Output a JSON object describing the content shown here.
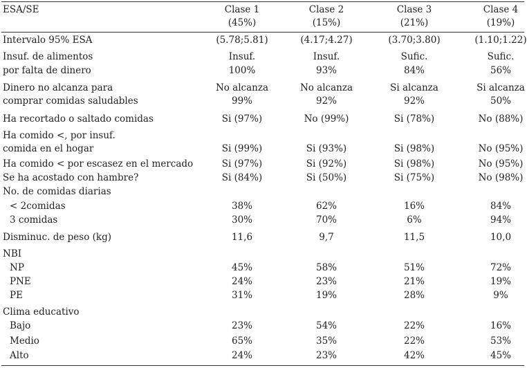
{
  "header": {
    "label": "ESA/SE",
    "classes": [
      {
        "name": "Clase 1",
        "pct": "(45%)"
      },
      {
        "name": "Clase 2",
        "pct": "(15%)"
      },
      {
        "name": "Clase 3",
        "pct": "(21%)"
      },
      {
        "name": "Clase 4",
        "pct": "(19%)"
      }
    ]
  },
  "rows": [
    {
      "label": "Intervalo 95% ESA",
      "values": [
        "(5.78;5.81)",
        "(4.17;4.27)",
        "(3.70;3.80)",
        "(1.10;1.22)"
      ]
    },
    {
      "label": "Insuf. de alimentos",
      "values": [
        "Insuf.",
        "Insuf.",
        "Sufic.",
        "Sufic."
      ]
    },
    {
      "label": "por falta de dinero",
      "values": [
        "100%",
        "93%",
        "84%",
        "56%"
      ]
    },
    {
      "label": "Dinero no alcanza para",
      "values": [
        "No alcanza",
        "No alcanza",
        "Si alcanza",
        "Si alcanza"
      ]
    },
    {
      "label": "comprar comidas saludables",
      "values": [
        "99%",
        "92%",
        "92%",
        "50%"
      ]
    },
    {
      "label": "Ha recortado o saltado comidas",
      "values": [
        "Si (97%)",
        "No (99%)",
        "Si (78%)",
        "No (88%)"
      ]
    },
    {
      "label": "Ha comido <, por insuf.",
      "values": [
        "",
        "",
        "",
        ""
      ]
    },
    {
      "label": "comida en el hogar",
      "values": [
        "Si (99%)",
        "Si (93%)",
        "Si (98%)",
        "No (95%)"
      ]
    },
    {
      "label": "Ha comido < por escasez en el mercado",
      "values": [
        "Si (97%)",
        "Si (92%)",
        "Si (98%)",
        "No (95%)"
      ]
    },
    {
      "label": "Se ha acostado con hambre?",
      "values": [
        "Si (84%)",
        "Si (50%)",
        "Si (75%)",
        "No (98%)"
      ]
    },
    {
      "label": "No. de comidas diarias",
      "values": [
        "",
        "",
        "",
        ""
      ]
    },
    {
      "label": "< 2comidas",
      "values": [
        "38%",
        "62%",
        "16%",
        "84%"
      ]
    },
    {
      "label": "3 comidas",
      "values": [
        "30%",
        "70%",
        "6%",
        "94%"
      ]
    },
    {
      "label": "Disminuc. de peso (kg)",
      "values": [
        "11,6",
        "9,7",
        "11,5",
        "10,0"
      ]
    },
    {
      "label": "NBI",
      "values": [
        "",
        "",
        "",
        ""
      ]
    },
    {
      "label": "NP",
      "values": [
        "45%",
        "58%",
        "51%",
        "72%"
      ]
    },
    {
      "label": "PNE",
      "values": [
        "24%",
        "23%",
        "21%",
        "19%"
      ]
    },
    {
      "label": "PE",
      "values": [
        "31%",
        "19%",
        "28%",
        "9%"
      ]
    },
    {
      "label": "Clima educativo",
      "values": [
        "",
        "",
        "",
        ""
      ]
    },
    {
      "label": "Bajo",
      "values": [
        "23%",
        "54%",
        "22%",
        "16%"
      ]
    },
    {
      "label": "Medio",
      "values": [
        "65%",
        "35%",
        "22%",
        "53%"
      ]
    },
    {
      "label": "Alto",
      "values": [
        "24%",
        "23%",
        "42%",
        "45%"
      ]
    }
  ]
}
